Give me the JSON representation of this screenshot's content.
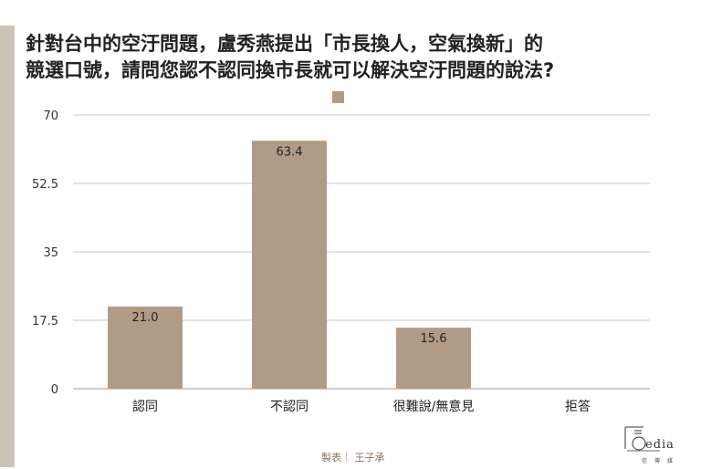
{
  "title_line1": "針對台中的空汙問題，盧秀燕提出「市長換人，空氣換新」的",
  "title_line2": "競選口號，請問您認不認同換市長就可以解決空汙問題的說法?",
  "footer": {
    "credit": "製表｜ 王子承",
    "logo_text": "edia",
    "logo_sub": "信傳媒"
  },
  "colors": {
    "bar": "#b29b86",
    "accent": "#cdc2b6"
  },
  "chart_data": {
    "type": "bar",
    "categories": [
      "認同",
      "不認同",
      "很難說/無意見",
      "拒答"
    ],
    "values": [
      21.0,
      63.4,
      15.6,
      null
    ],
    "value_labels": [
      "21.0",
      "63.4",
      "15.6",
      ""
    ],
    "ylim": [
      0,
      70
    ],
    "yticks": [
      0,
      17.5,
      35,
      52.5,
      70
    ],
    "ytick_labels": [
      "0",
      "17.5",
      "35",
      "52.5",
      "70"
    ],
    "grid": true,
    "legend": "top-center"
  }
}
